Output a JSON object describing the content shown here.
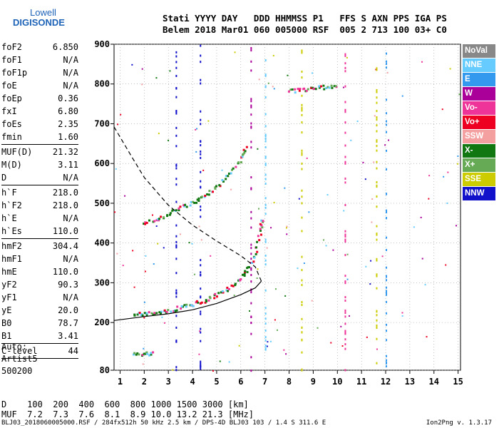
{
  "logo": {
    "line1": "Lowell",
    "line2": "DIGISONDE"
  },
  "header": {
    "line1": "Stati YYYY DAY   DDD HHMMSS P1   FFS S AXN PPS IGA PS",
    "line2": "Belem 2018 Mar01 060 005000 RSF  005 2 713 100 03+ C0"
  },
  "params": [
    {
      "name": "foF2",
      "value": "6.850"
    },
    {
      "name": "foF1",
      "value": "N/A"
    },
    {
      "name": "foF1p",
      "value": "N/A"
    },
    {
      "name": "foE",
      "value": "N/A"
    },
    {
      "name": "foEp",
      "value": "0.36"
    },
    {
      "name": "fxI",
      "value": "6.80"
    },
    {
      "name": "foEs",
      "value": "2.35"
    },
    {
      "name": "fmin",
      "value": "1.60"
    },
    {
      "sep": true
    },
    {
      "name": "MUF(D)",
      "value": "21.32"
    },
    {
      "name": "M(D)",
      "value": "3.11"
    },
    {
      "name": "D",
      "value": "N/A"
    },
    {
      "sep": true
    },
    {
      "name": "h`F",
      "value": "218.0"
    },
    {
      "name": "h`F2",
      "value": "218.0"
    },
    {
      "name": "h`E",
      "value": "N/A"
    },
    {
      "name": "h`Es",
      "value": "110.0"
    },
    {
      "sep": true
    },
    {
      "name": "hmF2",
      "value": "304.4"
    },
    {
      "name": "hmF1",
      "value": "N/A"
    },
    {
      "name": "hmE",
      "value": "110.0"
    },
    {
      "name": "yF2",
      "value": "90.3"
    },
    {
      "name": "yF1",
      "value": "N/A"
    },
    {
      "name": "yE",
      "value": "20.0"
    },
    {
      "name": "B0",
      "value": "78.7"
    },
    {
      "name": "B1",
      "value": "3.41"
    },
    {
      "sep": true
    },
    {
      "name": "C-level",
      "value": "44"
    },
    {
      "sep": true
    }
  ],
  "auto": {
    "l1": "Auto:",
    "l2": "Artist5",
    "l3": "500200"
  },
  "distance_row": {
    "label": "D",
    "values": [
      "100",
      "200",
      "400",
      "600",
      "800",
      "1000",
      "1500",
      "3000"
    ],
    "unit": "[km]"
  },
  "muf_row": {
    "label": "MUF",
    "values": [
      "7.2",
      "7.3",
      "7.6",
      "8.1",
      "8.9",
      "10.0",
      "13.2",
      "21.3"
    ],
    "unit": "[MHz]"
  },
  "footer": "BLJ03_2018060005000.RSF / 284fx512h 50 kHz 2.5 km / DPS-4D BLJ03 103 / 1.4 S 311.6 E",
  "version": "Ion2Png v. 1.3.17",
  "legend": [
    {
      "label": "NoVal",
      "color": "#888888"
    },
    {
      "label": "NNE",
      "color": "#66ccff"
    },
    {
      "label": "E",
      "color": "#3399ee"
    },
    {
      "label": "W",
      "color": "#aa0099"
    },
    {
      "label": "Vo-",
      "color": "#ee3399"
    },
    {
      "label": "Vo+",
      "color": "#ee0022"
    },
    {
      "label": "SSW",
      "color": "#f4a0a0"
    },
    {
      "label": "X-",
      "color": "#117711"
    },
    {
      "label": "X+",
      "color": "#66aa55"
    },
    {
      "label": "SSE",
      "color": "#cccc00"
    },
    {
      "label": "NNW",
      "color": "#1111cc"
    }
  ],
  "chart_data": {
    "type": "scatter",
    "xlim": [
      0.75,
      15.1
    ],
    "ylim": [
      80,
      900
    ],
    "xticks": [
      1,
      2,
      3,
      4,
      5,
      6,
      7,
      8,
      9,
      10,
      11,
      12,
      13,
      14,
      15
    ],
    "yticks": [
      80,
      200,
      300,
      400,
      500,
      600,
      700,
      800,
      900
    ],
    "grid": true,
    "traces": [
      {
        "name": "O-trace F2",
        "color": "#117711",
        "points": [
          [
            1.5,
            222
          ],
          [
            2.0,
            224
          ],
          [
            2.5,
            228
          ],
          [
            3.0,
            232
          ],
          [
            3.5,
            240
          ],
          [
            4.0,
            248
          ],
          [
            4.5,
            258
          ],
          [
            5.0,
            272
          ],
          [
            5.5,
            290
          ],
          [
            6.0,
            315
          ],
          [
            6.3,
            340
          ],
          [
            6.6,
            380
          ],
          [
            6.8,
            440
          ],
          [
            6.85,
            465
          ]
        ]
      },
      {
        "name": "O-trace F2 2hop",
        "color": "#117711",
        "points": [
          [
            1.9,
            450
          ],
          [
            2.5,
            462
          ],
          [
            3.0,
            475
          ],
          [
            3.5,
            490
          ],
          [
            4.0,
            505
          ],
          [
            4.5,
            520
          ],
          [
            5.0,
            545
          ],
          [
            5.5,
            575
          ],
          [
            6.0,
            615
          ],
          [
            6.2,
            645
          ]
        ]
      },
      {
        "name": "Es",
        "color": "#999999",
        "points": [
          [
            1.5,
            122
          ],
          [
            2.0,
            124
          ],
          [
            2.35,
            125
          ]
        ]
      },
      {
        "name": "E 800",
        "color": "#3399ee",
        "points": [
          [
            8.0,
            785
          ],
          [
            8.5,
            787
          ],
          [
            9.0,
            790
          ],
          [
            9.5,
            795
          ],
          [
            10.0,
            800
          ]
        ]
      }
    ],
    "profile": [
      [
        0.75,
        205
      ],
      [
        2.0,
        215
      ],
      [
        3.0,
        222
      ],
      [
        4.0,
        232
      ],
      [
        5.0,
        248
      ],
      [
        6.0,
        270
      ],
      [
        6.6,
        287
      ],
      [
        6.85,
        304
      ]
    ],
    "profile_dashed": [
      [
        0.75,
        692
      ],
      [
        1.5,
        615
      ],
      [
        2.0,
        565
      ],
      [
        3.0,
        495
      ],
      [
        4.0,
        445
      ],
      [
        5.0,
        405
      ],
      [
        6.0,
        368
      ],
      [
        6.6,
        340
      ],
      [
        6.85,
        304
      ]
    ]
  }
}
